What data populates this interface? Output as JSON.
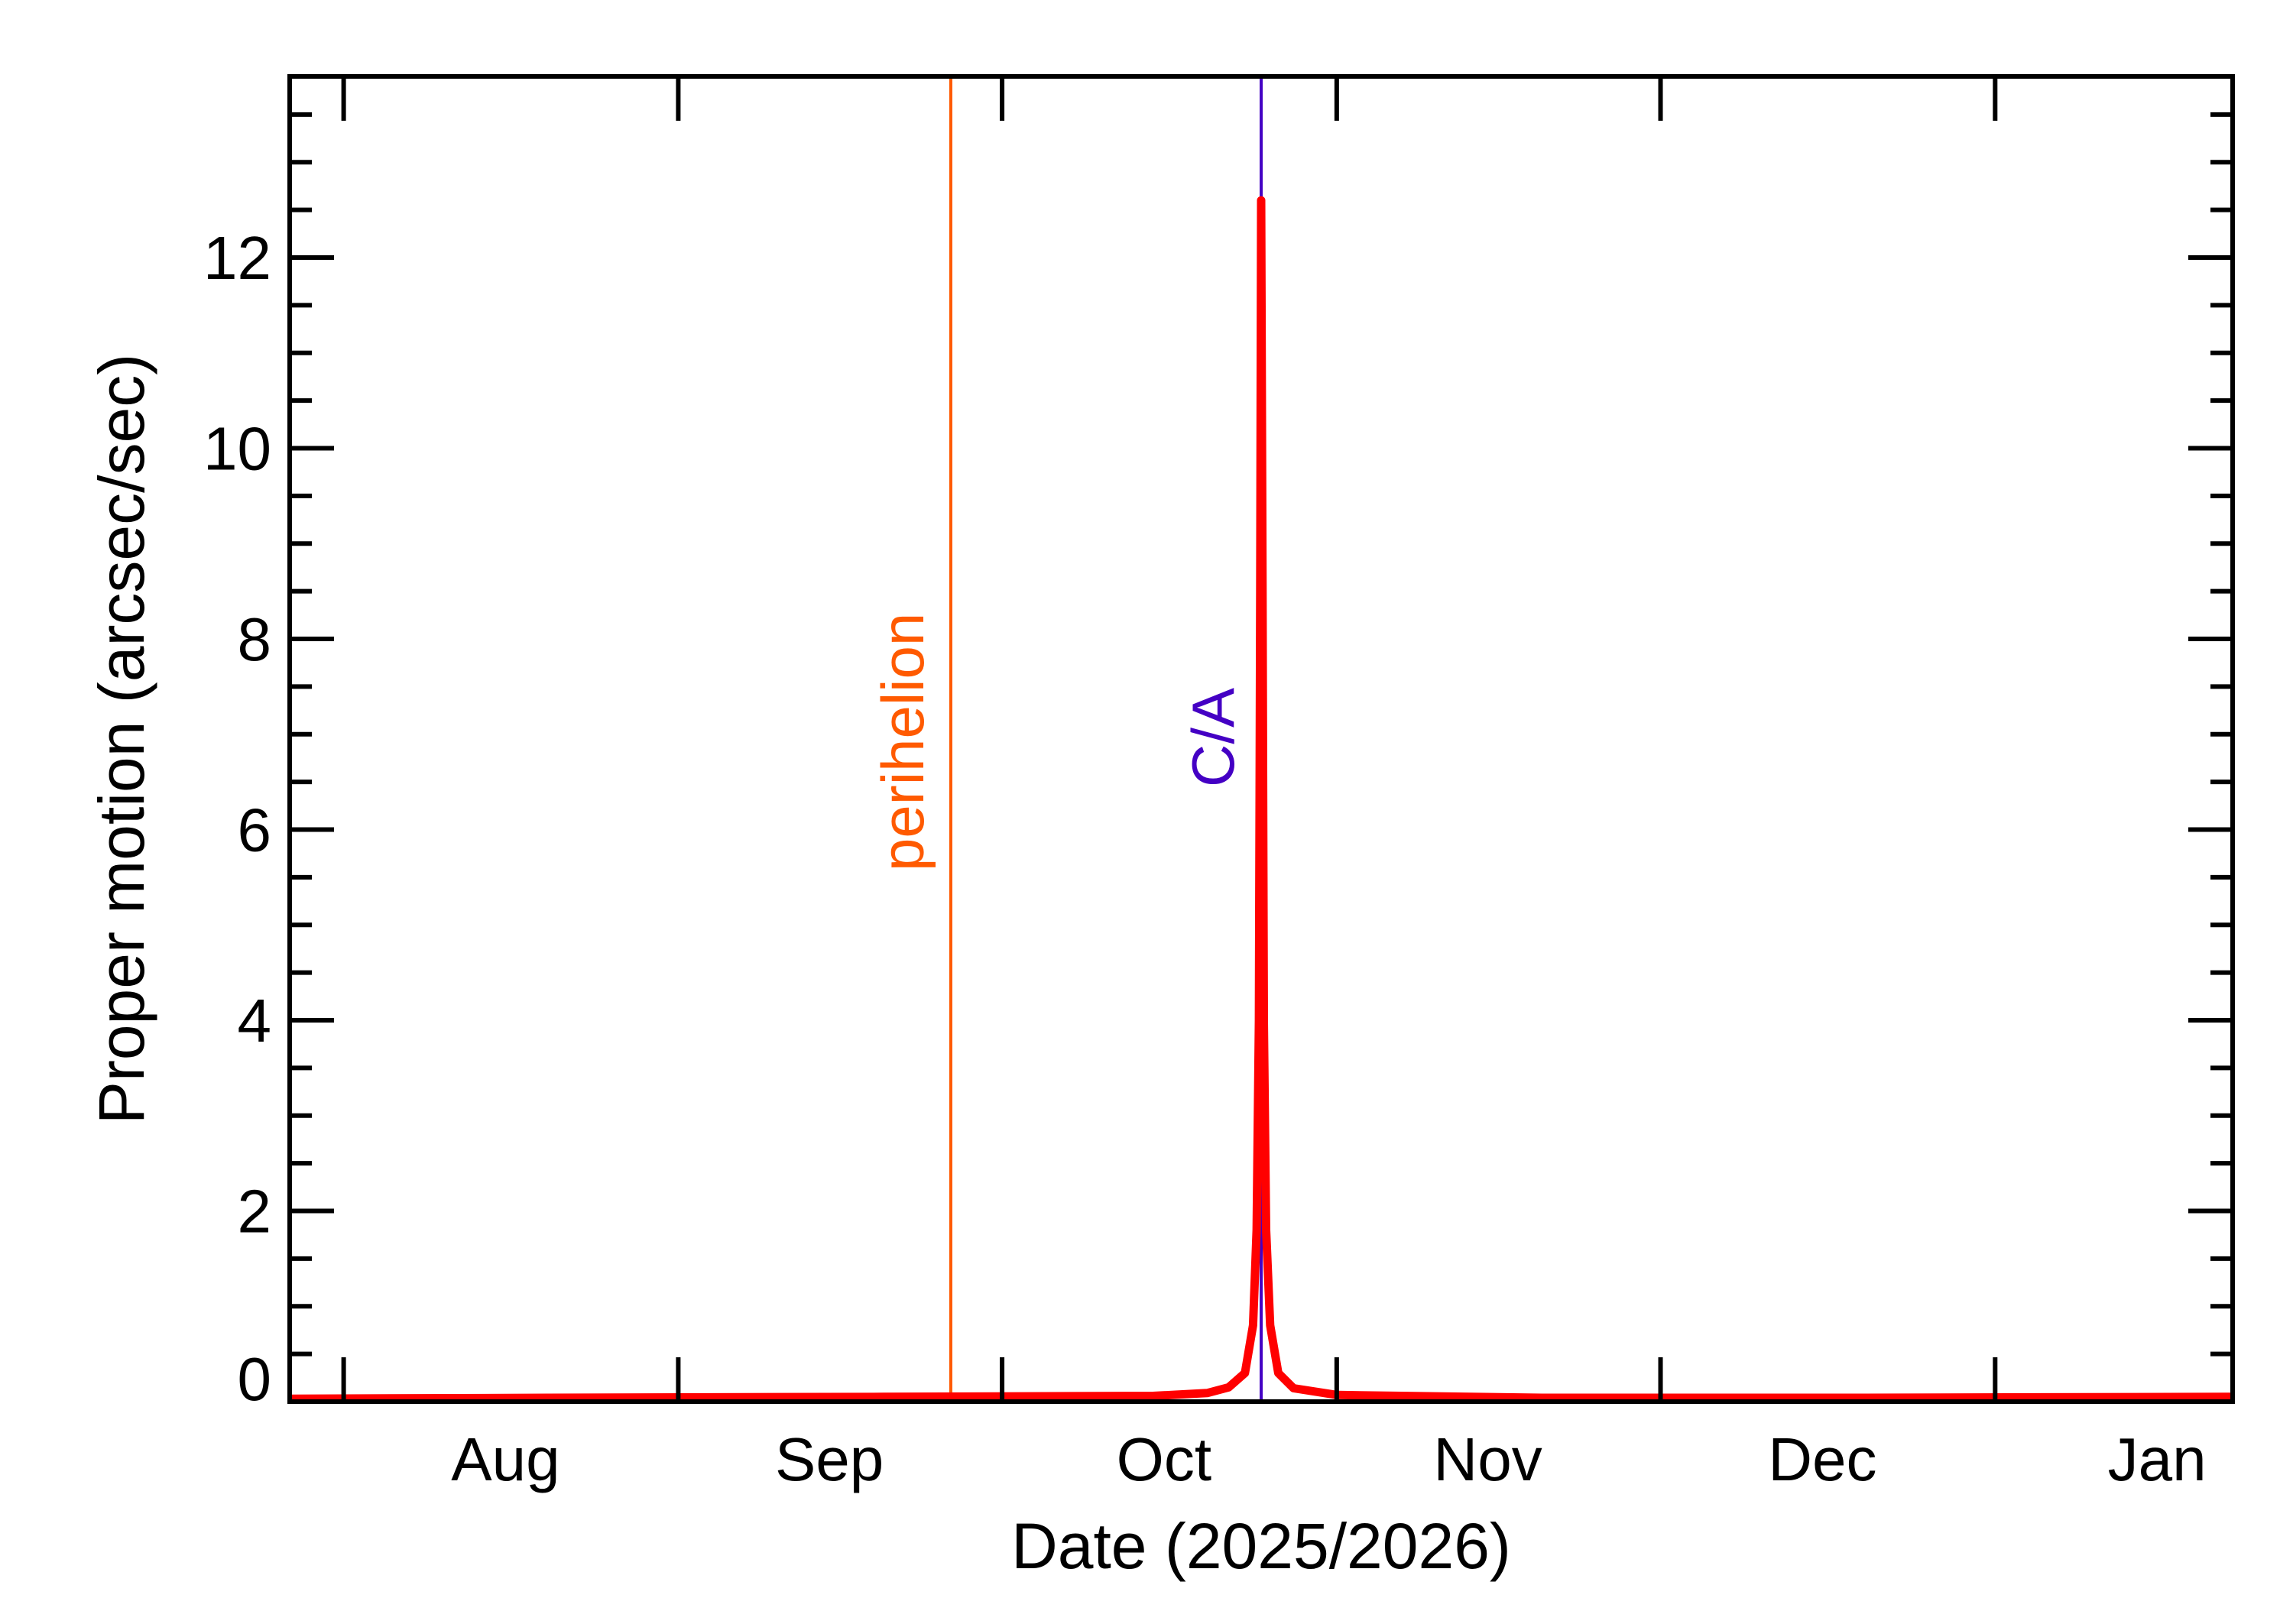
{
  "chart_data": {
    "type": "line",
    "title": "",
    "xlabel": "Date (2025/2026)",
    "ylabel": "Proper motion (arcsec/sec)",
    "xlim": [
      "2025-07-27",
      "2026-01-23"
    ],
    "ylim": [
      0,
      13.9
    ],
    "grid": false,
    "x_ticks": [
      {
        "date": "2025-08-01",
        "label": "Aug"
      },
      {
        "date": "2025-09-01",
        "label": "Sep"
      },
      {
        "date": "2025-10-01",
        "label": "Oct"
      },
      {
        "date": "2025-11-01",
        "label": "Nov"
      },
      {
        "date": "2025-12-01",
        "label": "Dec"
      },
      {
        "date": "2026-01-01",
        "label": "Jan"
      }
    ],
    "month_label_positions": [
      "2025-08-16",
      "2025-09-15",
      "2025-10-16",
      "2025-11-15",
      "2025-12-16",
      "2026-01-16"
    ],
    "y_ticks": [
      0,
      2,
      4,
      6,
      8,
      10,
      12
    ],
    "y_tick_labels": [
      "0",
      "2",
      "4",
      "6",
      "8",
      "10",
      "12"
    ],
    "y_minor_step": 0.5,
    "series": [
      {
        "color": "#ff0000",
        "points": [
          [
            "2025-07-27T00:00",
            0.03
          ],
          [
            "2025-08-20T00:00",
            0.04
          ],
          [
            "2025-09-20T00:00",
            0.05
          ],
          [
            "2025-10-15T00:00",
            0.06
          ],
          [
            "2025-10-20T00:00",
            0.09
          ],
          [
            "2025-10-22T00:00",
            0.15
          ],
          [
            "2025-10-23T12:00",
            0.3
          ],
          [
            "2025-10-24T06:00",
            0.8
          ],
          [
            "2025-10-24T14:00",
            1.8
          ],
          [
            "2025-10-24T19:00",
            4.0
          ],
          [
            "2025-10-24T22:00",
            8.5
          ],
          [
            "2025-10-25T00:00",
            12.6
          ],
          [
            "2025-10-25T03:00",
            8.5
          ],
          [
            "2025-10-25T06:00",
            4.0
          ],
          [
            "2025-10-25T11:00",
            1.8
          ],
          [
            "2025-10-25T20:00",
            0.8
          ],
          [
            "2025-10-26T14:00",
            0.3
          ],
          [
            "2025-10-28T00:00",
            0.14
          ],
          [
            "2025-11-01T00:00",
            0.07
          ],
          [
            "2025-11-20T00:00",
            0.04
          ],
          [
            "2025-12-20T00:00",
            0.04
          ],
          [
            "2026-01-23T00:00",
            0.05
          ]
        ]
      }
    ],
    "annotations": [
      {
        "label": "perihelion",
        "date": "2025-09-26T06:00",
        "color": "#ff5a00"
      },
      {
        "label": "C/A",
        "date": "2025-10-25T00:00",
        "color": "#4400c4"
      }
    ],
    "axis_color": "#000000"
  }
}
